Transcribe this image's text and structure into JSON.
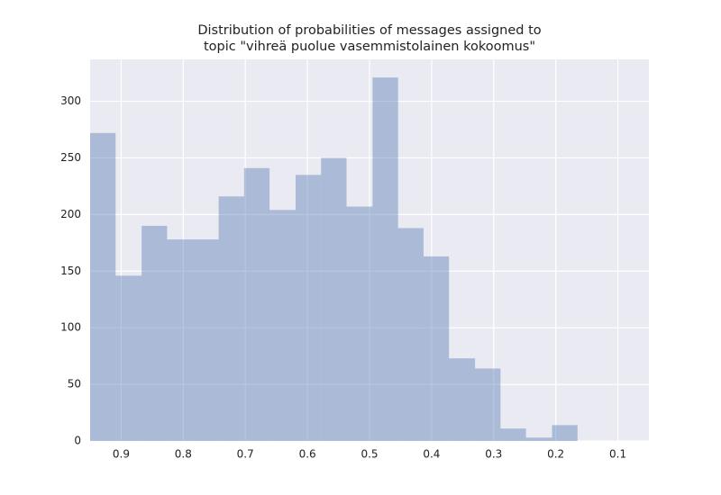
{
  "chart_data": {
    "type": "histogram",
    "title": [
      "Distribution of probabilities of messages assigned to",
      " topic \"vihreä puolue vasemmistolainen kokoomus\""
    ],
    "bins": [
      0.165,
      0.206,
      0.248,
      0.289,
      0.33,
      0.372,
      0.413,
      0.454,
      0.495,
      0.537,
      0.578,
      0.619,
      0.661,
      0.702,
      0.743,
      0.785,
      0.826,
      0.867,
      0.909,
      0.95
    ],
    "counts": [
      14,
      3,
      11,
      64,
      73,
      163,
      188,
      321,
      207,
      250,
      235,
      204,
      241,
      216,
      178,
      178,
      190,
      146,
      272
    ],
    "color": "#4c72b0",
    "xlim": [
      0.95,
      0.05
    ],
    "xticks": [
      0.9,
      0.8,
      0.7,
      0.6,
      0.5,
      0.4,
      0.3,
      0.2,
      0.1
    ],
    "ylim": [
      0,
      337
    ],
    "yticks": [
      0,
      50,
      100,
      150,
      200,
      250,
      300
    ],
    "grid": true
  }
}
